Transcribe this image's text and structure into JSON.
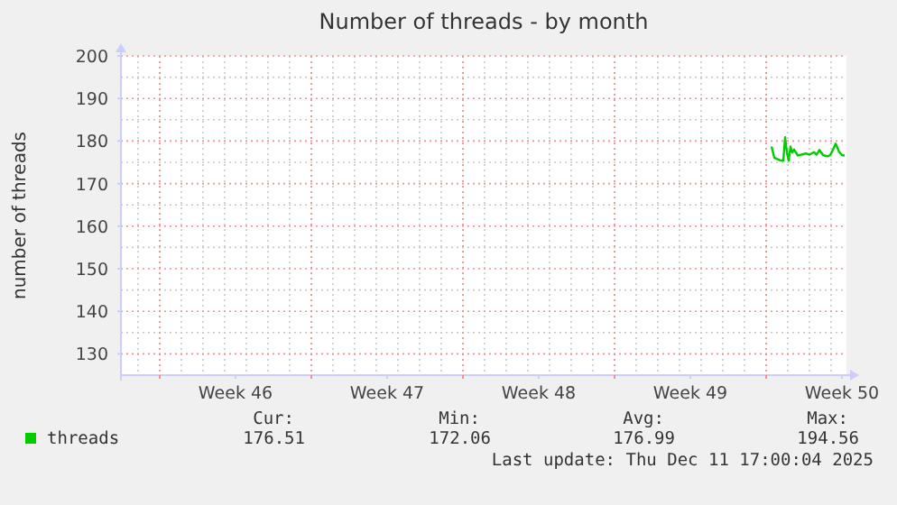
{
  "chart_data": {
    "type": "line",
    "title": "Number of threads - by month",
    "ylabel": "number of threads",
    "xlim": [
      "2025-11-08T05:00",
      "2025-12-11T17:00"
    ],
    "ylim": [
      125,
      200
    ],
    "xticks": [
      {
        "value": "2025-11-10",
        "label": null
      },
      {
        "value": "2025-11-13T12:00",
        "label": "Week 46"
      },
      {
        "value": "2025-11-17",
        "label": null
      },
      {
        "value": "2025-11-20T12:00",
        "label": "Week 47"
      },
      {
        "value": "2025-11-24",
        "label": null
      },
      {
        "value": "2025-11-27T12:00",
        "label": "Week 48"
      },
      {
        "value": "2025-12-01",
        "label": null
      },
      {
        "value": "2025-12-04T12:00",
        "label": "Week 49"
      },
      {
        "value": "2025-12-08",
        "label": null
      },
      {
        "value": "2025-12-11T12:00",
        "label": "Week 50"
      }
    ],
    "yticks": [
      130,
      140,
      150,
      160,
      170,
      180,
      190,
      200
    ],
    "grid": true,
    "legend": "bottom",
    "marker": "none",
    "line_style": "solid",
    "series": [
      {
        "name": "threads",
        "color": "#00cc00",
        "x": [
          "2025-12-08T06:00",
          "2025-12-08T09:00",
          "2025-12-08T15:00",
          "2025-12-08T19:00",
          "2025-12-08T21:00",
          "2025-12-08T23:00",
          "2025-12-09T01:00",
          "2025-12-09T03:00",
          "2025-12-09T05:00",
          "2025-12-09T07:00",
          "2025-12-09T11:00",
          "2025-12-09T15:00",
          "2025-12-09T20:00",
          "2025-12-10T00:00",
          "2025-12-10T05:00",
          "2025-12-10T08:00",
          "2025-12-10T11:00",
          "2025-12-10T15:00",
          "2025-12-10T20:00",
          "2025-12-10T23:00",
          "2025-12-11T03:00",
          "2025-12-11T05:00",
          "2025-12-11T09:00",
          "2025-12-11T12:00",
          "2025-12-11T15:00"
        ],
        "values": [
          178.7,
          176.1,
          175.5,
          175.4,
          180.9,
          177.3,
          175.4,
          178.7,
          177.3,
          178.0,
          176.6,
          176.8,
          177.1,
          176.8,
          177.4,
          176.8,
          177.9,
          176.7,
          176.4,
          176.7,
          178.4,
          179.4,
          177.4,
          176.7,
          176.6
        ]
      }
    ],
    "annotations": [
      "Cur:",
      "Min:",
      "Avg:",
      "Max:",
      "176.51",
      "172.06",
      "176.99",
      "194.56",
      "Last update: Thu Dec 11 17:00:04 2025"
    ]
  }
}
